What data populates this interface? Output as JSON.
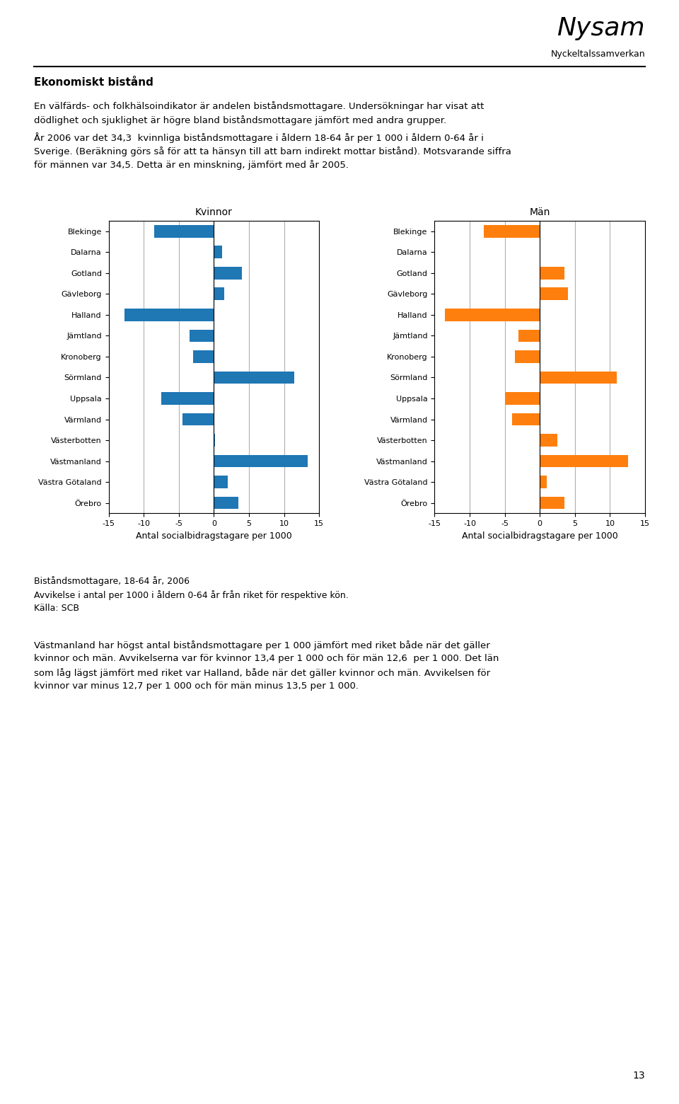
{
  "title": "Ekonomiskt bistånd",
  "annotations": [
    "Nysam",
    "Nyckeltalssamverkan",
    "En välfärds- och folkhälsoindikator är andelen biståndsmottagare. Undersökningar har visat att",
    "dödlighet och sjuklighet är högre bland biståndsmottagare jämfört med andra grupper.",
    "År 2006 var det 34,3  kvinnliga biståndsmottagare i åldern 18-64 år per 1 000 i åldern 0-64 år i",
    "Sverige. (Beräkning görs så för att ta hänsyn till att barn indirekt mottar bistånd). Motsvarande siffra",
    "för männen var 34,5. Detta är en minskning, jämfört med år 2005.",
    "Biståndsmottagare, 18-64 år, 2006",
    "Avvikelse i antal per 1000 i åldern 0-64 år från riket för respektive kön.",
    "Källa: SCB",
    "Västmanland har högst antal biståndsmottagare per 1 000 jämfört med riket både när det gäller",
    "kvinnor och män. Avvikelserna var för kvinnor 13,4 per 1 000 och för män 12,6  per 1 000. Det län",
    "som låg lägst jämfört med riket var Halland, både när det gäller kvinnor och män. Avvikelsen för",
    "kvinnor var minus 12,7 per 1 000 och för män minus 13,5 per 1 000.",
    "13"
  ],
  "chart_data": [
    {
      "type": "bar",
      "orientation": "horizontal",
      "title": "Kvinnor",
      "categories": [
        "Blekinge",
        "Dalarna",
        "Gotland",
        "Gävleborg",
        "Halland",
        "Jämtland",
        "Kronoberg",
        "Sörmland",
        "Uppsala",
        "Värmland",
        "Västerbotten",
        "Västmanland",
        "Västra Götaland",
        "Örebro"
      ],
      "values": [
        -8.5,
        1.2,
        4.0,
        1.5,
        -12.7,
        -3.5,
        -3.0,
        11.5,
        -7.5,
        -4.5,
        0.2,
        13.4,
        2.0,
        3.5
      ],
      "xlabel": "Antal socialbidragstagare per 1000",
      "xlim": [
        -15,
        15
      ],
      "xticks": [
        -15,
        -10,
        -5,
        0,
        5,
        10,
        15
      ],
      "grid": true
    },
    {
      "type": "bar",
      "orientation": "horizontal",
      "title": "Män",
      "categories": [
        "Blekinge",
        "Dalarna",
        "Gotland",
        "Gävleborg",
        "Halland",
        "Jämtland",
        "Kronoberg",
        "Sörmland",
        "Uppsala",
        "Värmland",
        "Västerbotten",
        "Västmanland",
        "Västra Götaland",
        "Örebro"
      ],
      "values": [
        -8.0,
        0.1,
        3.5,
        4.0,
        -13.5,
        -3.0,
        -3.5,
        11.0,
        -5.0,
        -4.0,
        2.5,
        12.6,
        1.0,
        3.5
      ],
      "xlabel": "Antal socialbidragstagare per 1000",
      "xlim": [
        -15,
        15
      ],
      "xticks": [
        -15,
        -10,
        -5,
        0,
        5,
        10,
        15
      ],
      "grid": true
    }
  ]
}
